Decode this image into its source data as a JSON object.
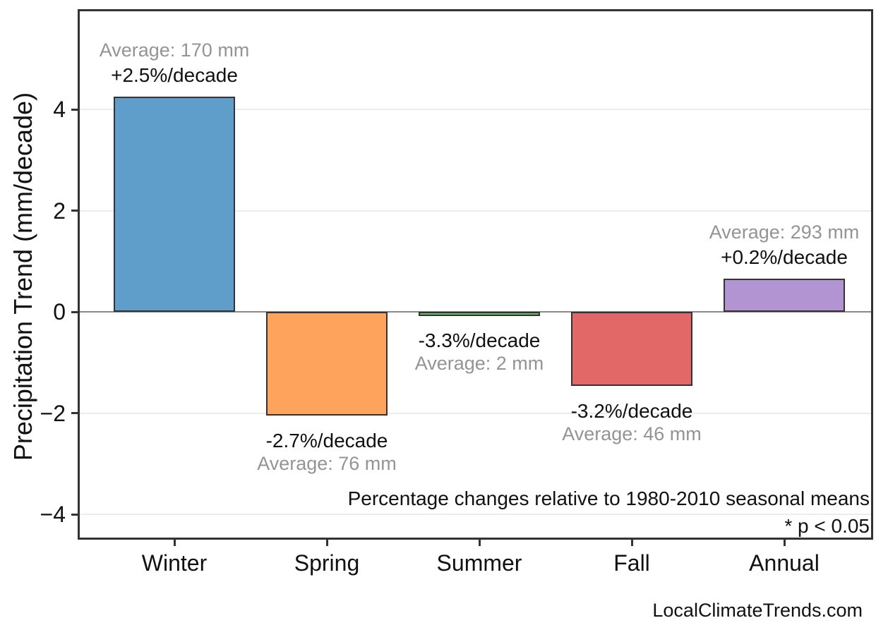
{
  "chart_data": {
    "type": "bar",
    "title": "",
    "ylabel": "Precipitation Trend (mm/decade)",
    "xlabel": "",
    "ylim": [
      -4.5,
      6.0
    ],
    "yticks": [
      4,
      2,
      0,
      -2,
      -4
    ],
    "ytick_labels": [
      "4",
      "2",
      "0",
      "−2",
      "−4"
    ],
    "grid": "horizontal major gridlines only, light gray; solid medium-gray line at y=0",
    "legend": "none",
    "categories": [
      "Winter",
      "Spring",
      "Summer",
      "Fall",
      "Annual"
    ],
    "values": [
      4.25,
      -2.05,
      -0.07,
      -1.47,
      0.66
    ],
    "bars": [
      {
        "category": "Winter",
        "value": 4.25,
        "color": "#5f9ecb",
        "pct_label": "+2.5%/decade",
        "avg_label": "Average: 170 mm",
        "label_position": "above"
      },
      {
        "category": "Spring",
        "value": -2.05,
        "color": "#fda35b",
        "pct_label": "-2.7%/decade",
        "avg_label": "Average: 76 mm",
        "label_position": "below"
      },
      {
        "category": "Summer",
        "value": -0.07,
        "color": "#69bb69",
        "pct_label": "-3.3%/decade",
        "avg_label": "Average: 2 mm",
        "label_position": "below"
      },
      {
        "category": "Fall",
        "value": -1.47,
        "color": "#e26868",
        "pct_label": "-3.2%/decade",
        "avg_label": "Average: 46 mm",
        "label_position": "below"
      },
      {
        "category": "Annual",
        "value": 0.66,
        "color": "#b294d2",
        "pct_label": "+0.2%/decade",
        "avg_label": "Average: 293 mm",
        "label_position": "above"
      }
    ],
    "bar_edge_color": "#333333",
    "gridline_color": "#ececec",
    "zero_line_color": "#8a8a8a",
    "annotation_gray_color": "#949494"
  },
  "annotations": {
    "note_line1": "Percentage changes relative to 1980-2010 seasonal means",
    "note_line2": "* p < 0.05"
  },
  "footer": {
    "watermark": "LocalClimateTrends.com"
  }
}
